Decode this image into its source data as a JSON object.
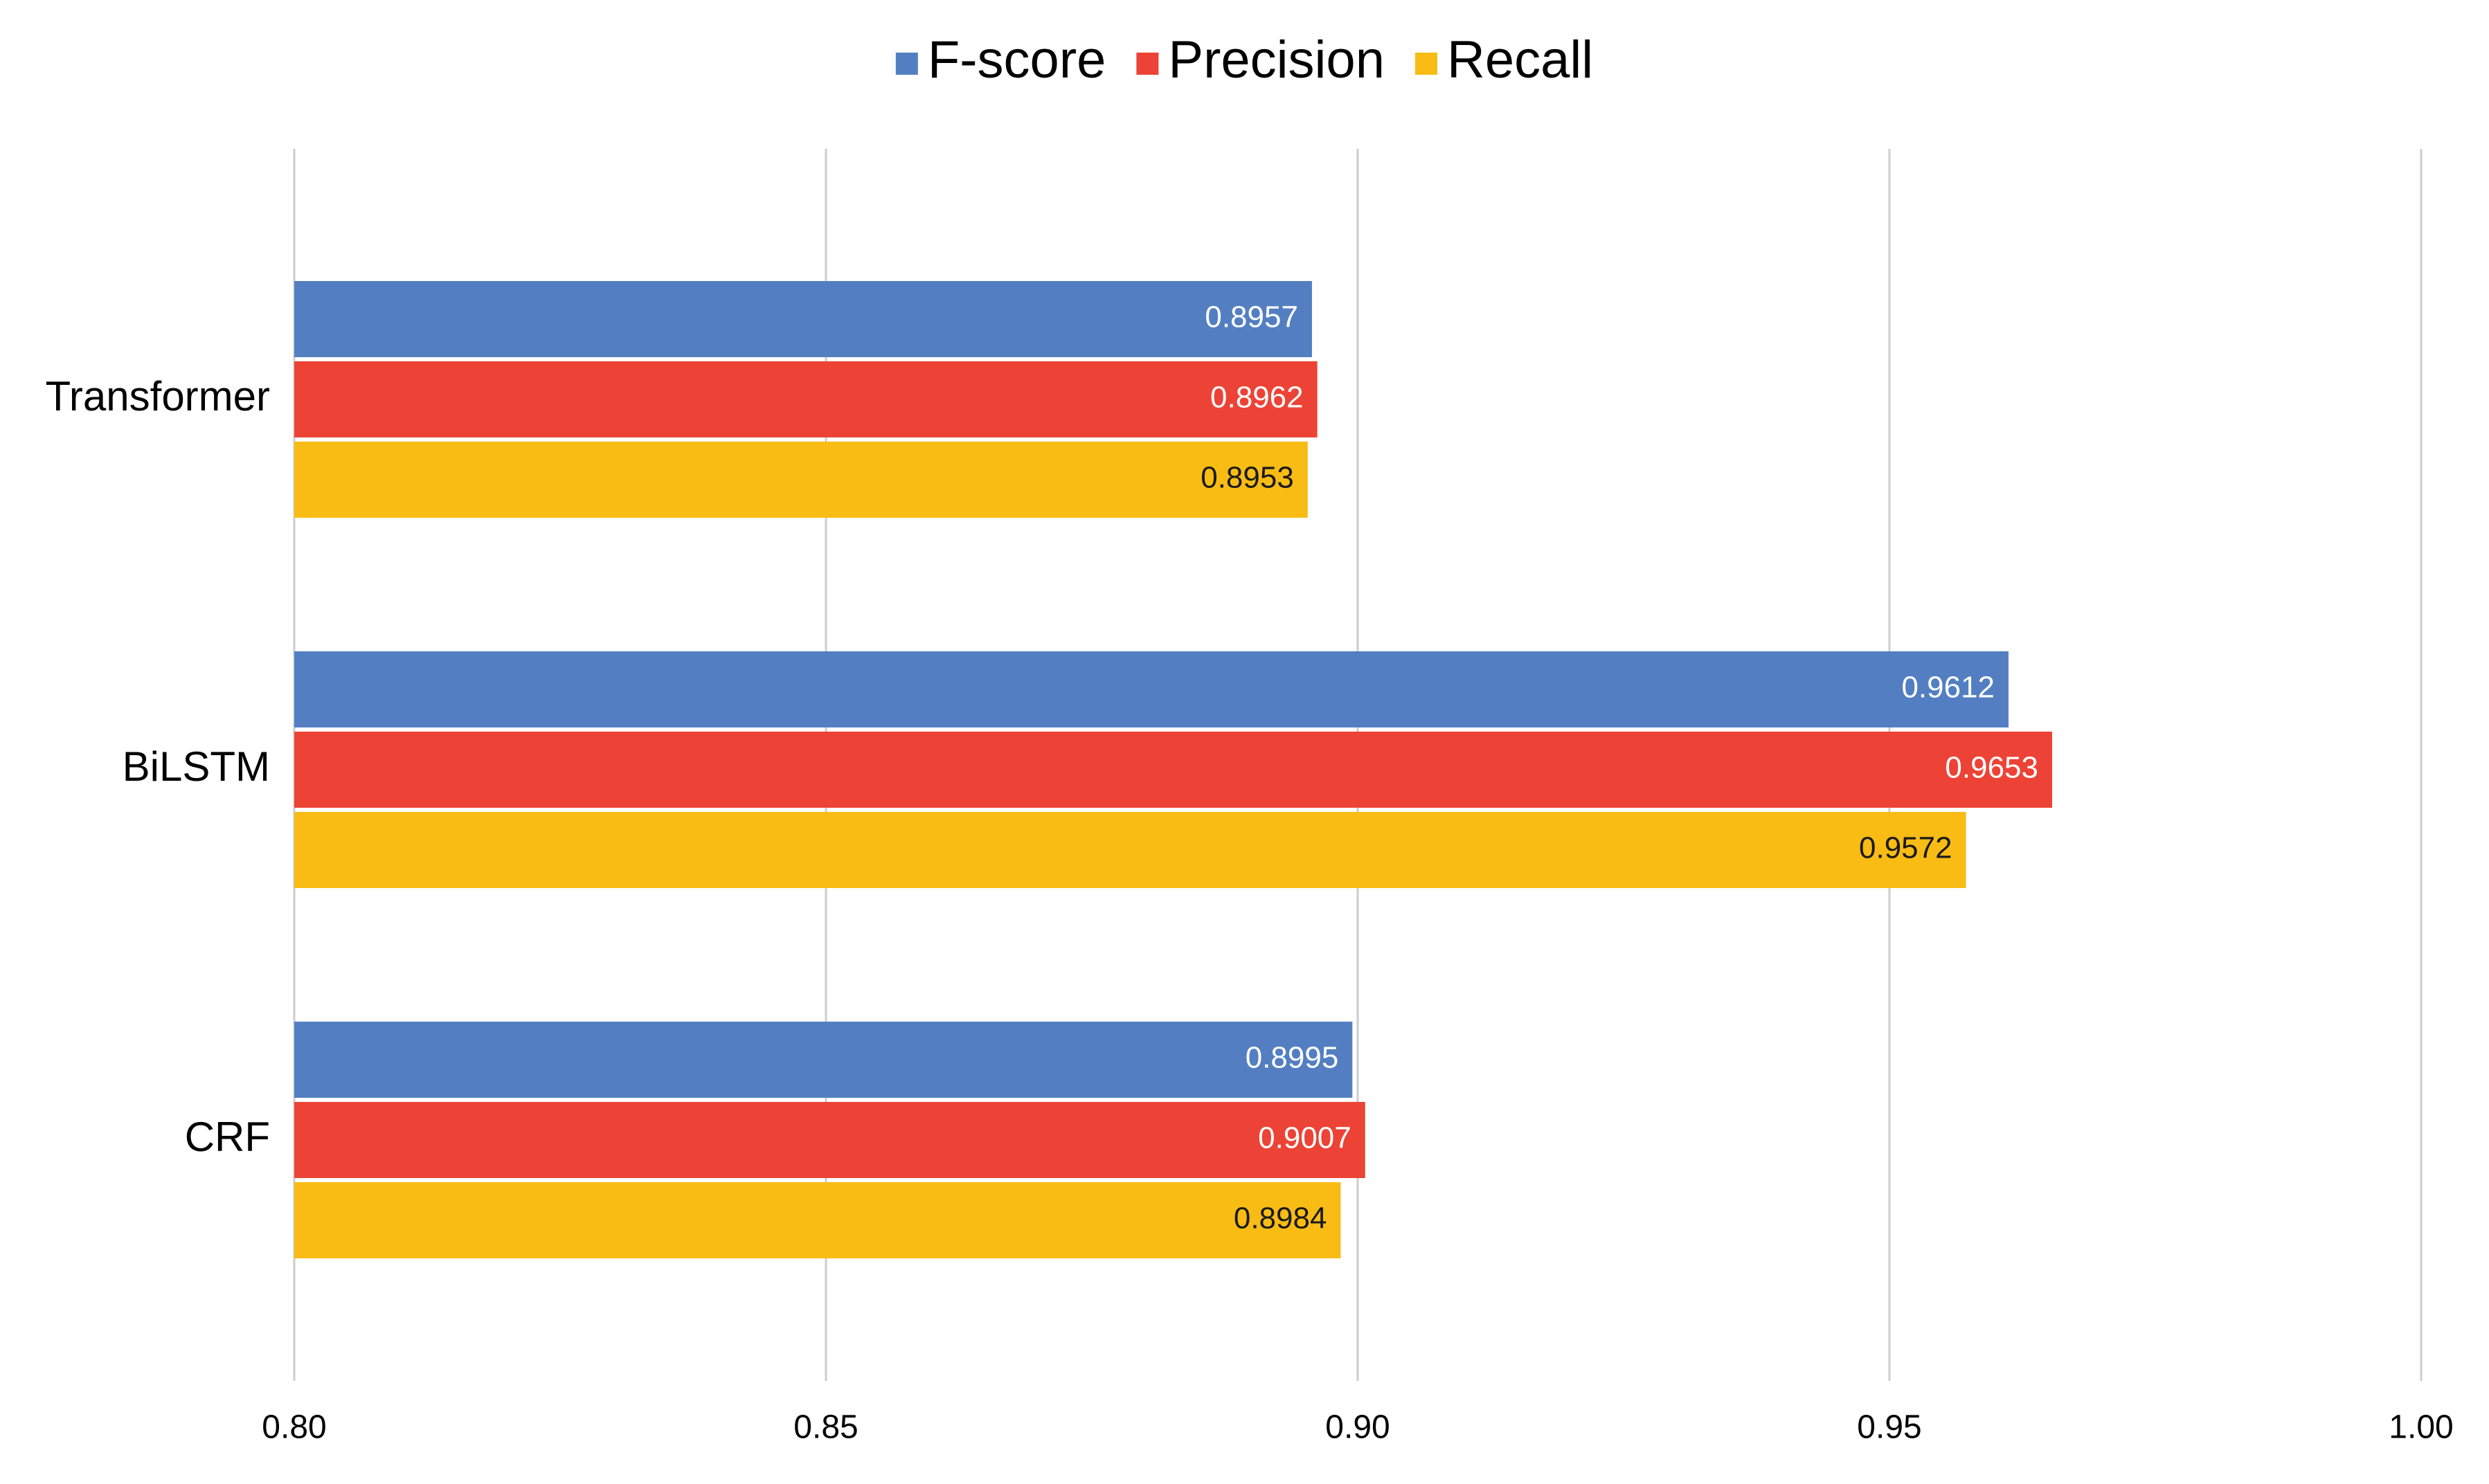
{
  "chart_data": {
    "type": "bar",
    "orientation": "horizontal",
    "title": "",
    "xlabel": "",
    "ylabel": "",
    "xlim": [
      0.8,
      1.0
    ],
    "x_ticks": [
      "0.80",
      "0.85",
      "0.90",
      "0.95",
      "1.00"
    ],
    "x_tick_values": [
      0.8,
      0.85,
      0.9,
      0.95,
      1.0
    ],
    "grid": true,
    "legend_position": "top-center",
    "categories": [
      "Transformer",
      "BiLSTM",
      "CRF"
    ],
    "series": [
      {
        "name": "F-score",
        "color": "#537fc2",
        "label_color": "#ffffff",
        "values": [
          0.8957,
          0.9612,
          0.8995
        ],
        "labels": [
          "0.8957",
          "0.9612",
          "0.8995"
        ]
      },
      {
        "name": "Precision",
        "color": "#ec4336",
        "label_color": "#ffffff",
        "values": [
          0.8962,
          0.9653,
          0.9007
        ],
        "labels": [
          "0.8962",
          "0.9653",
          "0.9007"
        ]
      },
      {
        "name": "Recall",
        "color": "#f9bc15",
        "label_color": "#1a1a1a",
        "values": [
          0.8953,
          0.9572,
          0.8984
        ],
        "labels": [
          "0.8953",
          "0.9572",
          "0.8984"
        ]
      }
    ]
  },
  "colors": {
    "gridline": "#cccccc",
    "text": "#000000",
    "background": "#ffffff"
  }
}
